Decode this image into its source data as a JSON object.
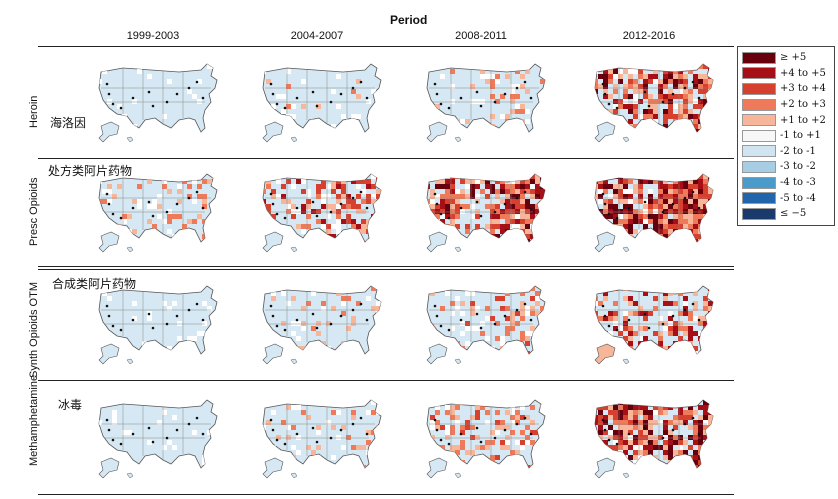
{
  "header": {
    "title": "Period"
  },
  "periods": [
    "1999-2003",
    "2004-2007",
    "2008-2011",
    "2012-2016"
  ],
  "rows": [
    {
      "label": "Heroin",
      "cn": "海洛因",
      "intensity": [
        0,
        0.05,
        0.15,
        0.75
      ]
    },
    {
      "label": "Presc Opioids",
      "cn": "处方类阿片药物",
      "intensity": [
        0.2,
        0.5,
        0.8,
        1.0
      ]
    },
    {
      "label": "Synth Opioids OTM",
      "cn": "合成类阿片药物",
      "intensity": [
        0,
        0.1,
        0.3,
        0.6
      ]
    },
    {
      "label": "Methamphetamine",
      "cn": "冰毒",
      "intensity": [
        0,
        0.15,
        0.35,
        0.85
      ]
    }
  ],
  "legend": {
    "items": [
      {
        "label": "≥ +5",
        "color": "#67000d"
      },
      {
        "label": "+4 to +5",
        "color": "#a50f15"
      },
      {
        "label": "+3 to +4",
        "color": "#d6402f"
      },
      {
        "label": "+2 to +3",
        "color": "#ef7a5a"
      },
      {
        "label": "+1 to +2",
        "color": "#f7b59a"
      },
      {
        "label": "-1 to +1",
        "color": "#f7f7f7"
      },
      {
        "label": "-2 to -1",
        "color": "#d1e5f0"
      },
      {
        "label": "-3 to -2",
        "color": "#a6cde3"
      },
      {
        "label": "-4 to -3",
        "color": "#4a9bc9"
      },
      {
        "label": "-5 to -4",
        "color": "#2166ac"
      },
      {
        "label": "≤ −5",
        "color": "#1a3a6b"
      }
    ]
  }
}
